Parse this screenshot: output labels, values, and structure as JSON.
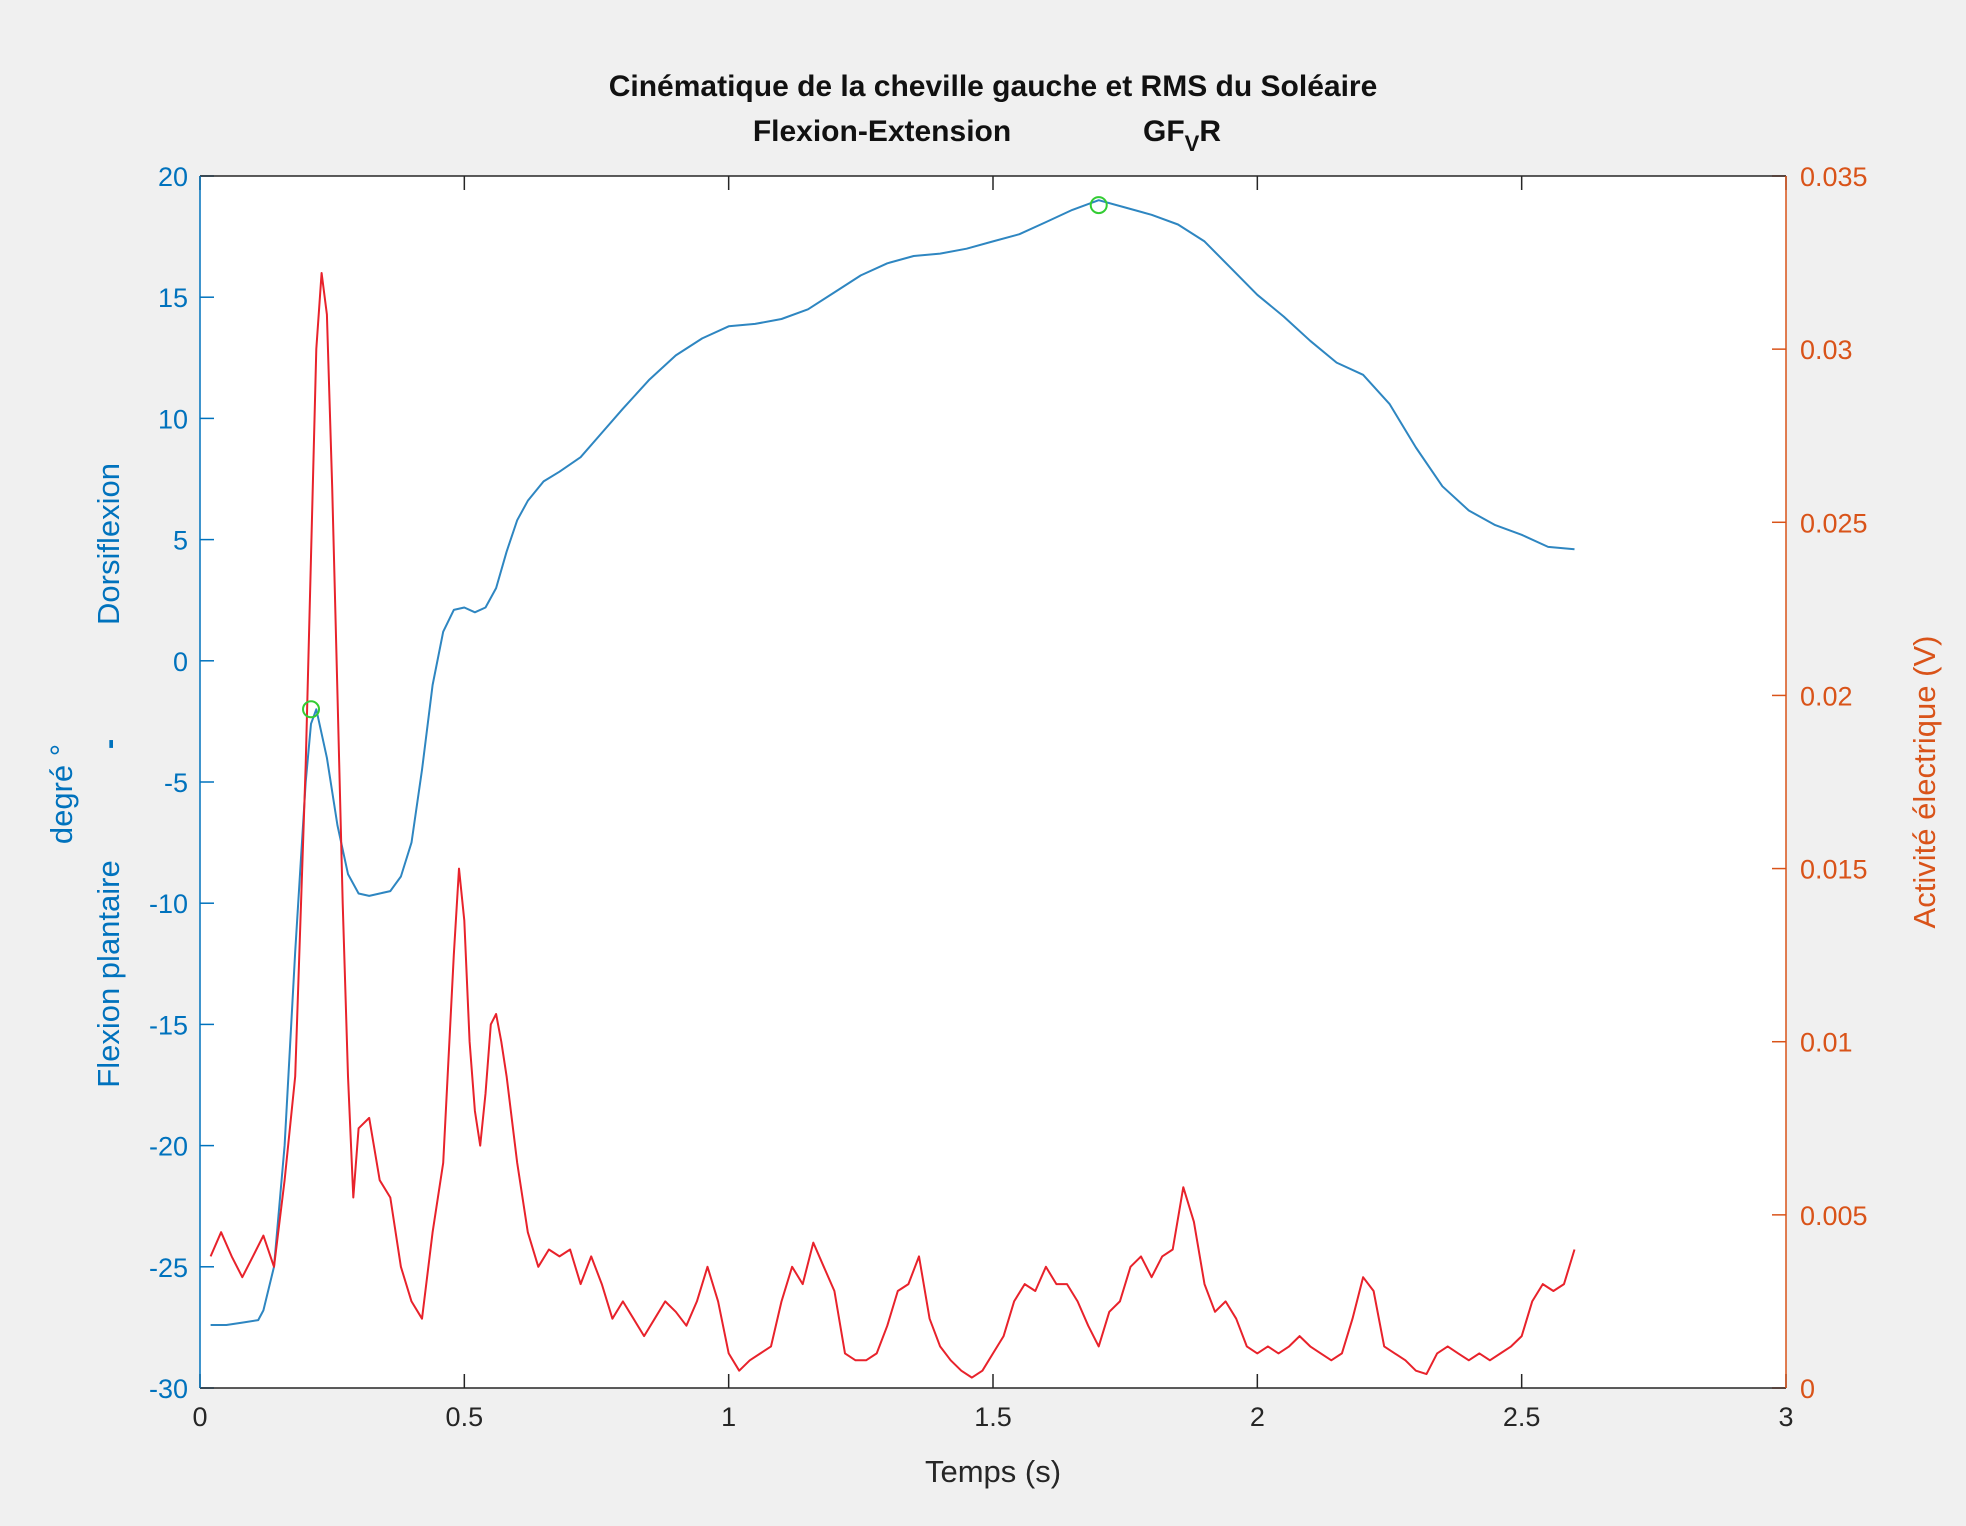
{
  "figure": {
    "title_line1": "Cinématique de la cheville gauche et RMS du Soléaire",
    "title_line2_left": "Flexion-Extension",
    "title_line2_right_main": "GF",
    "title_line2_right_sub": "V",
    "title_line2_right_tail": "R"
  },
  "colors": {
    "background": "#f0f0f0",
    "axes_face": "#ffffff",
    "left_axis": "#0072bd",
    "right_axis": "#d95319",
    "angle_line": "#2e86c1",
    "emg_line": "#e8222b",
    "marker": "#33cc33",
    "box": "#262626"
  },
  "chart_data": {
    "type": "line",
    "title": "Cinématique de la cheville gauche et RMS du Soléaire",
    "subtitle": "Flexion-Extension GF_V R",
    "xlabel": "Temps (s)",
    "ylabel_left": {
      "line1": "Flexion plantaire",
      "separator": "-",
      "line2": "Dorsiflexion",
      "unit": "degré °"
    },
    "ylabel_right": "Activité électrique (V)",
    "xlim": [
      0,
      3
    ],
    "ylim_left": [
      -30,
      20
    ],
    "ylim_right": [
      0,
      0.035
    ],
    "xticks": [
      0,
      0.5,
      1,
      1.5,
      2,
      2.5,
      3
    ],
    "xtick_labels": [
      "0",
      "0.5",
      "1",
      "1.5",
      "2",
      "2.5",
      "3"
    ],
    "yticks_left": [
      -30,
      -25,
      -20,
      -15,
      -10,
      -5,
      0,
      5,
      10,
      15,
      20
    ],
    "ytick_labels_left": [
      "-30",
      "-25",
      "-20",
      "-15",
      "-10",
      "-5",
      "0",
      "5",
      "10",
      "15",
      "20"
    ],
    "yticks_right": [
      0,
      0.005,
      0.01,
      0.015,
      0.02,
      0.025,
      0.03,
      0.035
    ],
    "ytick_labels_right": [
      "0",
      "0.005",
      "0.01",
      "0.015",
      "0.02",
      "0.025",
      "0.03",
      "0.035"
    ],
    "grid": false,
    "series": [
      {
        "axis": "left",
        "color": "#2e86c1",
        "x": [
          0.02,
          0.05,
          0.08,
          0.11,
          0.12,
          0.14,
          0.16,
          0.18,
          0.2,
          0.21,
          0.22,
          0.24,
          0.26,
          0.28,
          0.3,
          0.32,
          0.34,
          0.36,
          0.38,
          0.4,
          0.42,
          0.44,
          0.46,
          0.48,
          0.5,
          0.52,
          0.54,
          0.56,
          0.58,
          0.6,
          0.62,
          0.65,
          0.68,
          0.72,
          0.76,
          0.8,
          0.85,
          0.9,
          0.95,
          1.0,
          1.05,
          1.1,
          1.15,
          1.2,
          1.25,
          1.3,
          1.35,
          1.4,
          1.45,
          1.5,
          1.55,
          1.6,
          1.65,
          1.7,
          1.75,
          1.8,
          1.85,
          1.9,
          1.95,
          2.0,
          2.05,
          2.1,
          2.15,
          2.2,
          2.25,
          2.3,
          2.35,
          2.4,
          2.45,
          2.5,
          2.55,
          2.6
        ],
        "y": [
          -27.4,
          -27.4,
          -27.3,
          -27.2,
          -26.8,
          -25.0,
          -20.0,
          -12.0,
          -5.0,
          -2.6,
          -2.0,
          -4.0,
          -6.8,
          -8.8,
          -9.6,
          -9.7,
          -9.6,
          -9.5,
          -8.9,
          -7.5,
          -4.5,
          -1.0,
          1.2,
          2.1,
          2.2,
          2.0,
          2.2,
          3.0,
          4.5,
          5.8,
          6.6,
          7.4,
          7.8,
          8.4,
          9.4,
          10.4,
          11.6,
          12.6,
          13.3,
          13.8,
          13.9,
          14.1,
          14.5,
          15.2,
          15.9,
          16.4,
          16.7,
          16.8,
          17.0,
          17.3,
          17.6,
          18.1,
          18.6,
          19.0,
          18.7,
          18.4,
          18.0,
          17.3,
          16.2,
          15.1,
          14.2,
          13.2,
          12.3,
          11.8,
          10.6,
          8.8,
          7.2,
          6.2,
          5.6,
          5.2,
          4.7,
          4.6
        ]
      },
      {
        "axis": "right",
        "color": "#e8222b",
        "x": [
          0.02,
          0.04,
          0.06,
          0.08,
          0.1,
          0.12,
          0.14,
          0.16,
          0.18,
          0.2,
          0.21,
          0.22,
          0.23,
          0.24,
          0.25,
          0.26,
          0.27,
          0.28,
          0.29,
          0.3,
          0.32,
          0.34,
          0.36,
          0.38,
          0.4,
          0.42,
          0.44,
          0.46,
          0.48,
          0.49,
          0.5,
          0.51,
          0.52,
          0.53,
          0.54,
          0.55,
          0.56,
          0.57,
          0.58,
          0.6,
          0.62,
          0.64,
          0.66,
          0.68,
          0.7,
          0.72,
          0.74,
          0.76,
          0.78,
          0.8,
          0.82,
          0.84,
          0.86,
          0.88,
          0.9,
          0.92,
          0.94,
          0.96,
          0.98,
          1.0,
          1.02,
          1.04,
          1.06,
          1.08,
          1.1,
          1.12,
          1.14,
          1.16,
          1.18,
          1.2,
          1.22,
          1.24,
          1.26,
          1.28,
          1.3,
          1.32,
          1.34,
          1.36,
          1.38,
          1.4,
          1.42,
          1.44,
          1.46,
          1.48,
          1.5,
          1.52,
          1.54,
          1.56,
          1.58,
          1.6,
          1.62,
          1.64,
          1.66,
          1.68,
          1.7,
          1.72,
          1.74,
          1.76,
          1.78,
          1.8,
          1.82,
          1.84,
          1.86,
          1.88,
          1.9,
          1.92,
          1.94,
          1.96,
          1.98,
          2.0,
          2.02,
          2.04,
          2.06,
          2.08,
          2.1,
          2.12,
          2.14,
          2.16,
          2.18,
          2.2,
          2.22,
          2.24,
          2.26,
          2.28,
          2.3,
          2.32,
          2.34,
          2.36,
          2.38,
          2.4,
          2.42,
          2.44,
          2.46,
          2.48,
          2.5,
          2.52,
          2.54,
          2.56,
          2.58,
          2.6
        ],
        "y": [
          0.0038,
          0.0045,
          0.0038,
          0.0032,
          0.0038,
          0.0044,
          0.0035,
          0.006,
          0.009,
          0.018,
          0.024,
          0.03,
          0.0322,
          0.031,
          0.026,
          0.02,
          0.014,
          0.009,
          0.0055,
          0.0075,
          0.0078,
          0.006,
          0.0055,
          0.0035,
          0.0025,
          0.002,
          0.0045,
          0.0065,
          0.0125,
          0.015,
          0.0135,
          0.01,
          0.008,
          0.007,
          0.0085,
          0.0105,
          0.0108,
          0.01,
          0.009,
          0.0065,
          0.0045,
          0.0035,
          0.004,
          0.0038,
          0.004,
          0.003,
          0.0038,
          0.003,
          0.002,
          0.0025,
          0.002,
          0.0015,
          0.002,
          0.0025,
          0.0022,
          0.0018,
          0.0025,
          0.0035,
          0.0025,
          0.001,
          0.0005,
          0.0008,
          0.001,
          0.0012,
          0.0025,
          0.0035,
          0.003,
          0.0042,
          0.0035,
          0.0028,
          0.001,
          0.0008,
          0.0008,
          0.001,
          0.0018,
          0.0028,
          0.003,
          0.0038,
          0.002,
          0.0012,
          0.0008,
          0.0005,
          0.0003,
          0.0005,
          0.001,
          0.0015,
          0.0025,
          0.003,
          0.0028,
          0.0035,
          0.003,
          0.003,
          0.0025,
          0.0018,
          0.0012,
          0.0022,
          0.0025,
          0.0035,
          0.0038,
          0.0032,
          0.0038,
          0.004,
          0.0058,
          0.0048,
          0.003,
          0.0022,
          0.0025,
          0.002,
          0.0012,
          0.001,
          0.0012,
          0.001,
          0.0012,
          0.0015,
          0.0012,
          0.001,
          0.0008,
          0.001,
          0.002,
          0.0032,
          0.0028,
          0.0012,
          0.001,
          0.0008,
          0.0005,
          0.0004,
          0.001,
          0.0012,
          0.001,
          0.0008,
          0.001,
          0.0008,
          0.001,
          0.0012,
          0.0015,
          0.0025,
          0.003,
          0.0028,
          0.003,
          0.004
        ]
      }
    ],
    "markers": [
      {
        "axis": "left",
        "x": 0.21,
        "y": -2.0,
        "shape": "circle",
        "color": "#33cc33"
      },
      {
        "axis": "left",
        "x": 1.7,
        "y": 18.8,
        "shape": "circle",
        "color": "#33cc33"
      }
    ]
  }
}
